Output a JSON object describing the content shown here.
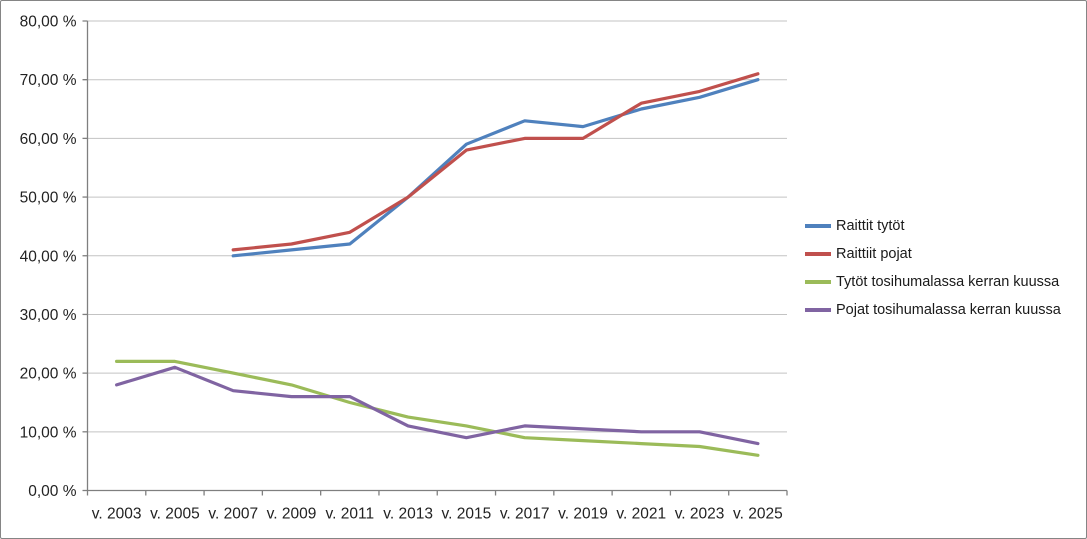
{
  "chart_data": {
    "type": "line",
    "title": "",
    "categories": [
      "v. 2003",
      "v. 2005",
      "v. 2007",
      "v. 2009",
      "v. 2011",
      "v. 2013",
      "v. 2015",
      "v. 2017",
      "v. 2019",
      "v. 2021",
      "v. 2023",
      "v. 2025"
    ],
    "series": [
      {
        "name": "Raittit tytöt",
        "color": "#4F81BD",
        "values": [
          null,
          null,
          40,
          41,
          42,
          50,
          59,
          63,
          62,
          65,
          67,
          70
        ]
      },
      {
        "name": "Raittiit pojat",
        "color": "#C0504D",
        "values": [
          null,
          null,
          41,
          42,
          44,
          50,
          58,
          60,
          60,
          66,
          68,
          71
        ]
      },
      {
        "name": "Tytöt tosihumalassa kerran kuussa",
        "color": "#9BBB59",
        "values": [
          22,
          22,
          20,
          18,
          15,
          12.5,
          11,
          9,
          8.5,
          8,
          7.5,
          6
        ]
      },
      {
        "name": "Pojat tosihumalassa kerran kuussa",
        "color": "#8064A2",
        "values": [
          18,
          21,
          17,
          16,
          16,
          11,
          9,
          11,
          10.5,
          10,
          10,
          8
        ]
      }
    ],
    "y_axis": {
      "min": 0,
      "max": 80,
      "step": 10,
      "tick_labels": [
        "0,00 %",
        "10,00 %",
        "20,00 %",
        "30,00 %",
        "40,00 %",
        "50,00 %",
        "60,00 %",
        "70,00 %",
        "80,00 %"
      ]
    },
    "x_axis": {
      "tick_labels": [
        "v. 2003",
        "v. 2005",
        "v. 2007",
        "v. 2009",
        "v. 2011",
        "v. 2013",
        "v. 2015",
        "v. 2017",
        "v. 2019",
        "v. 2021",
        "v. 2023",
        "v. 2025"
      ]
    },
    "legend_position": "right",
    "grid": "horizontal",
    "style_colors": {
      "gridline": "#c3c3c3",
      "axis": "#7f7f7f",
      "tick": "#7f7f7f",
      "text": "#222222",
      "background": "#ffffff",
      "frame_border": "#858585"
    }
  }
}
